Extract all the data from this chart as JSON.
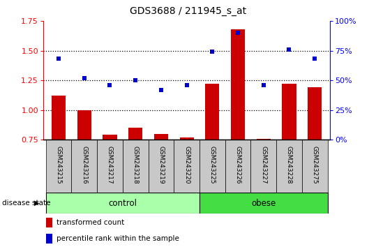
{
  "title": "GDS3688 / 211945_s_at",
  "samples": [
    "GSM243215",
    "GSM243216",
    "GSM243217",
    "GSM243218",
    "GSM243219",
    "GSM243220",
    "GSM243225",
    "GSM243226",
    "GSM243227",
    "GSM243228",
    "GSM243275"
  ],
  "transformed_count": [
    1.12,
    1.0,
    0.79,
    0.85,
    0.8,
    0.77,
    1.22,
    1.68,
    0.755,
    1.22,
    1.19
  ],
  "percentile_rank": [
    68,
    52,
    46,
    50,
    42,
    46,
    74,
    90,
    46,
    76,
    68
  ],
  "control_count": 6,
  "obese_count": 5,
  "ylim_left": [
    0.75,
    1.75
  ],
  "ylim_right": [
    0,
    100
  ],
  "yticks_left": [
    0.75,
    1.0,
    1.25,
    1.5,
    1.75
  ],
  "yticks_right": [
    0,
    25,
    50,
    75,
    100
  ],
  "bar_color": "#CC0000",
  "scatter_color": "#0000CC",
  "control_color": "#AAFFAA",
  "obese_color": "#44DD44",
  "bg_color": "#C8C8C8",
  "legend_bar_label": "transformed count",
  "legend_scatter_label": "percentile rank within the sample",
  "group_label": "disease state",
  "control_label": "control",
  "obese_label": "obese"
}
